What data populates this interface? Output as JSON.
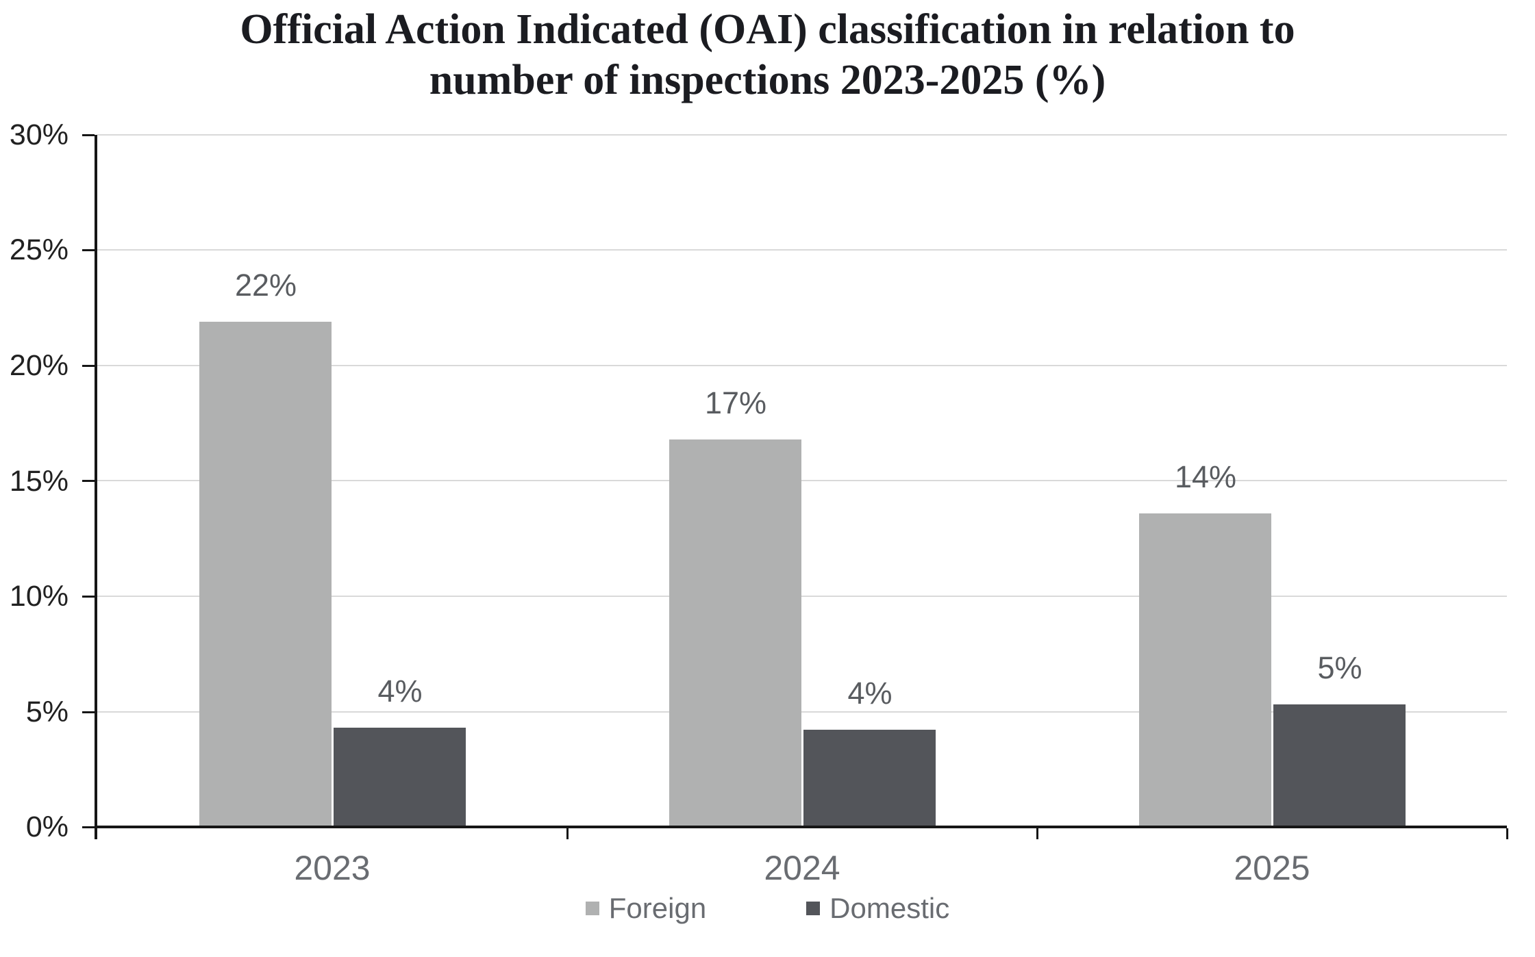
{
  "title": {
    "line1": "Official Action Indicated (OAI) classification in relation to",
    "line2": "number of inspections 2023-2025 (%)"
  },
  "chart_data": {
    "type": "bar",
    "title": "Official Action Indicated (OAI) classification in relation to number of inspections 2023-2025 (%)",
    "categories": [
      "2023",
      "2024",
      "2025"
    ],
    "series": [
      {
        "name": "Foreign",
        "values": [
          22,
          17,
          14
        ],
        "values_precise": [
          21.9,
          16.8,
          13.6
        ],
        "labels": [
          "22%",
          "17%",
          "14%"
        ],
        "color": "#b0b1b1"
      },
      {
        "name": "Domestic",
        "values": [
          4,
          4,
          5
        ],
        "values_precise": [
          4.3,
          4.2,
          5.3
        ],
        "labels": [
          "4%",
          "4%",
          "5%"
        ],
        "color": "#53555a"
      }
    ],
    "xlabel": "",
    "ylabel": "",
    "ylim": [
      0,
      30
    ],
    "ytick_step": 5,
    "yticks": [
      "0%",
      "5%",
      "10%",
      "15%",
      "20%",
      "25%",
      "30%"
    ],
    "grid": true,
    "legend_position": "bottom",
    "colors": {
      "foreign_bar": "#b0b1b1",
      "domestic_bar": "#53555a",
      "gridline": "#d9d9d9",
      "axis": "#161616",
      "y_tick_label": "#212121",
      "category_label": "#696c71",
      "data_label": "#595c60",
      "legend_text": "#696c71",
      "title_text": "#1b1c21",
      "background": "#ffffff"
    }
  }
}
